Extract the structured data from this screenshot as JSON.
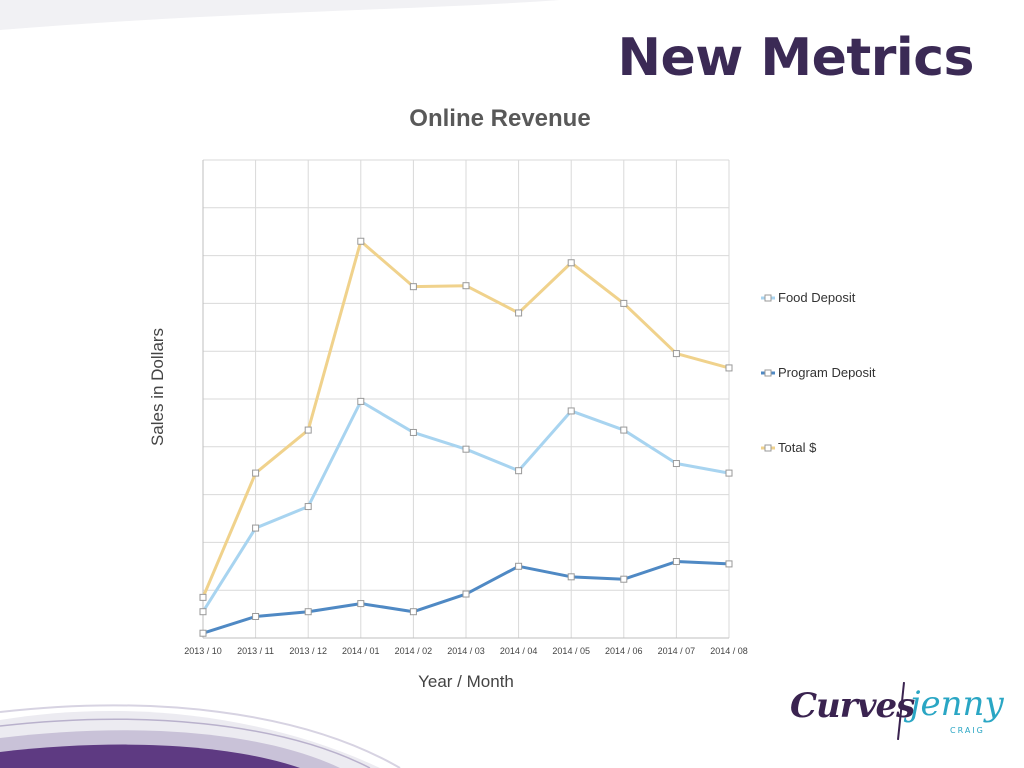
{
  "slide": {
    "title": "New Metrics",
    "logo": {
      "brand": "Curves",
      "partner": "jenny",
      "partner_sub": "CRAIG"
    }
  },
  "colors": {
    "title": "#3b2a55",
    "food_deposit": "#a8d4f0",
    "program_deposit": "#4f89c4",
    "total": "#f0d28c",
    "grid": "#d9d9d9",
    "swoosh": "#5e3a82"
  },
  "chart_data": {
    "type": "line",
    "title": "Online Revenue",
    "xlabel": "Year / Month",
    "ylabel": "Sales in Dollars",
    "categories": [
      "2013 / 10",
      "2013 / 11",
      "2013 / 12",
      "2014 / 01",
      "2014 / 02",
      "2014 / 03",
      "2014 / 04",
      "2014 / 05",
      "2014 / 06",
      "2014 / 07",
      "2014 / 08"
    ],
    "ylim": [
      0,
      10
    ],
    "y_tick_labels_shown": false,
    "grid": true,
    "legend_position": "right",
    "series": [
      {
        "name": "Food Deposit",
        "color": "#a8d4f0",
        "marker": "square",
        "values": [
          0.55,
          2.3,
          2.75,
          4.95,
          4.3,
          3.95,
          3.5,
          4.75,
          4.35,
          3.65,
          3.45
        ]
      },
      {
        "name": "Program Deposit",
        "color": "#4f89c4",
        "marker": "square",
        "values": [
          0.1,
          0.45,
          0.55,
          0.72,
          0.55,
          0.92,
          1.5,
          1.28,
          1.23,
          1.6,
          1.55
        ]
      },
      {
        "name": "Total $",
        "color": "#f0d28c",
        "marker": "square",
        "values": [
          0.85,
          3.45,
          4.35,
          8.3,
          7.35,
          7.37,
          6.8,
          7.85,
          7.0,
          5.95,
          5.65
        ]
      }
    ]
  }
}
